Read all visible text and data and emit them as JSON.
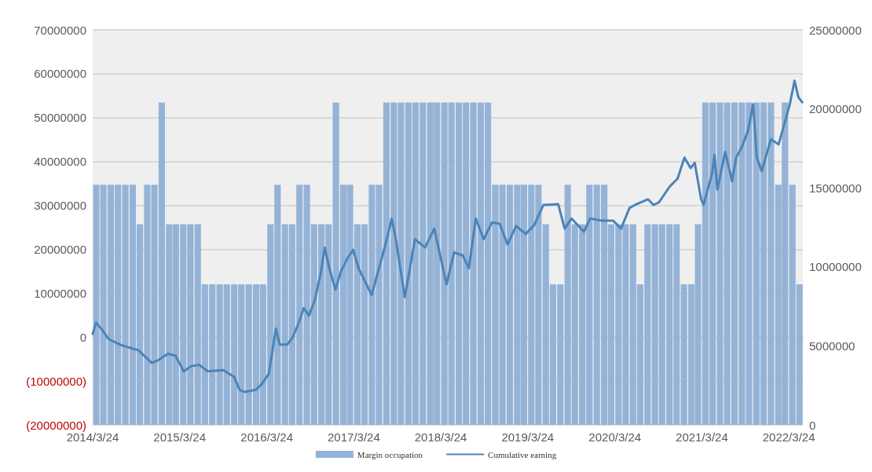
{
  "chart_data": {
    "type": "bar",
    "xlim": [
      "2014-03-24",
      "2022-05-22"
    ],
    "xticks": [
      {
        "value": "2014-03-24",
        "label": "2014/3/24"
      },
      {
        "value": "2015-03-24",
        "label": "2015/3/24"
      },
      {
        "value": "2016-03-24",
        "label": "2016/3/24"
      },
      {
        "value": "2017-03-24",
        "label": "2017/3/24"
      },
      {
        "value": "2018-03-24",
        "label": "2018/3/24"
      },
      {
        "value": "2019-03-24",
        "label": "2019/3/24"
      },
      {
        "value": "2020-03-24",
        "label": "2020/3/24"
      },
      {
        "value": "2021-03-24",
        "label": "2021/3/24"
      },
      {
        "value": "2022-03-24",
        "label": "2022/3/24"
      }
    ],
    "ylim": [
      -20000000,
      70000000
    ],
    "yticks": [
      {
        "value": -20000000,
        "label": "(20000000)"
      },
      {
        "value": -10000000,
        "label": "(10000000)"
      },
      0,
      10000000,
      20000000,
      30000000,
      40000000,
      50000000,
      60000000,
      70000000
    ],
    "y2lim": [
      0,
      25000000
    ],
    "y2ticks": [
      0,
      5000000,
      10000000,
      15000000,
      20000000,
      25000000
    ],
    "grid": "y",
    "legend": "bottom",
    "series": [
      {
        "name": "Margin occupation",
        "axis": "y2",
        "color": "#95b3d7",
        "x": [
          "2014-04-08",
          "2014-05-08",
          "2014-06-08",
          "2014-07-08",
          "2014-08-08",
          "2014-09-08",
          "2014-10-08",
          "2014-11-08",
          "2014-12-08",
          "2015-01-08",
          "2015-02-08",
          "2015-03-08",
          "2015-04-08",
          "2015-05-08",
          "2015-06-08",
          "2015-07-08",
          "2015-08-08",
          "2015-09-08",
          "2015-10-08",
          "2015-11-08",
          "2015-12-08",
          "2016-01-08",
          "2016-02-08",
          "2016-03-08",
          "2016-04-08",
          "2016-05-08",
          "2016-06-08",
          "2016-07-08",
          "2016-08-08",
          "2016-09-08",
          "2016-10-08",
          "2016-11-08",
          "2016-12-08",
          "2017-01-08",
          "2017-02-08",
          "2017-03-08",
          "2017-04-08",
          "2017-05-08",
          "2017-06-08",
          "2017-07-08",
          "2017-08-08",
          "2017-09-08",
          "2017-10-08",
          "2017-11-08",
          "2017-12-08",
          "2018-01-08",
          "2018-02-08",
          "2018-03-08",
          "2018-04-08",
          "2018-05-08",
          "2018-06-08",
          "2018-07-08",
          "2018-08-08",
          "2018-09-08",
          "2018-10-08",
          "2018-11-08",
          "2018-12-08",
          "2019-01-08",
          "2019-02-08",
          "2019-03-08",
          "2019-04-08",
          "2019-05-08",
          "2019-06-08",
          "2019-07-08",
          "2019-08-08",
          "2019-09-08",
          "2019-10-08",
          "2019-11-08",
          "2019-12-08",
          "2020-01-08",
          "2020-02-08",
          "2020-03-08",
          "2020-04-08",
          "2020-05-08",
          "2020-06-08",
          "2020-07-08",
          "2020-08-08",
          "2020-09-08",
          "2020-10-08",
          "2020-11-08",
          "2020-12-08",
          "2021-01-08",
          "2021-02-08",
          "2021-03-08",
          "2021-04-08",
          "2021-05-08",
          "2021-06-08",
          "2021-07-08",
          "2021-08-08",
          "2021-09-08",
          "2021-10-08",
          "2021-11-08",
          "2021-12-08",
          "2022-01-08",
          "2022-02-08",
          "2022-03-08",
          "2022-04-08",
          "2022-05-08"
        ],
        "values": [
          15200000,
          15200000,
          15200000,
          15200000,
          15200000,
          15200000,
          12700000,
          15200000,
          15200000,
          20400000,
          12700000,
          12700000,
          12700000,
          12700000,
          12700000,
          8900000,
          8900000,
          8900000,
          8900000,
          8900000,
          8900000,
          8900000,
          8900000,
          8900000,
          12700000,
          15200000,
          12700000,
          12700000,
          15200000,
          15200000,
          12700000,
          12700000,
          12700000,
          20400000,
          15200000,
          15200000,
          12700000,
          12700000,
          15200000,
          15200000,
          20400000,
          20400000,
          20400000,
          20400000,
          20400000,
          20400000,
          20400000,
          20400000,
          20400000,
          20400000,
          20400000,
          20400000,
          20400000,
          20400000,
          20400000,
          15200000,
          15200000,
          15200000,
          15200000,
          15200000,
          15200000,
          15200000,
          12700000,
          8900000,
          8900000,
          15200000,
          12700000,
          12700000,
          15200000,
          15200000,
          15200000,
          12700000,
          12700000,
          12700000,
          12700000,
          8900000,
          12700000,
          12700000,
          12700000,
          12700000,
          12700000,
          8900000,
          8900000,
          12700000,
          20400000,
          20400000,
          20400000,
          20400000,
          20400000,
          20400000,
          20400000,
          20400000,
          20400000,
          20400000,
          15200000,
          20400000,
          15200000,
          8900000
        ]
      },
      {
        "name": "Cumulative earning",
        "type": "line",
        "axis": "y",
        "color": "#4a84b8",
        "x": [
          "2014-03-24",
          "2014-04-07",
          "2014-04-29",
          "2014-05-31",
          "2014-07-16",
          "2014-08-24",
          "2014-10-02",
          "2014-11-27",
          "2014-12-19",
          "2015-02-03",
          "2015-03-06",
          "2015-04-10",
          "2015-05-13",
          "2015-06-14",
          "2015-07-20",
          "2015-09-23",
          "2015-11-08",
          "2015-11-30",
          "2015-12-23",
          "2016-02-07",
          "2016-03-01",
          "2016-04-01",
          "2016-04-17",
          "2016-05-01",
          "2016-05-17",
          "2016-06-18",
          "2016-07-11",
          "2016-08-03",
          "2016-08-26",
          "2016-09-17",
          "2016-10-11",
          "2016-11-05",
          "2016-11-22",
          "2016-12-11",
          "2017-01-06",
          "2017-01-29",
          "2017-02-27",
          "2017-03-21",
          "2017-04-13",
          "2017-06-07",
          "2017-08-04",
          "2017-08-30",
          "2017-09-15",
          "2017-10-24",
          "2017-12-06",
          "2018-01-17",
          "2018-02-25",
          "2018-04-17",
          "2018-05-19",
          "2018-06-24",
          "2018-07-20",
          "2018-08-18",
          "2018-09-20",
          "2018-10-25",
          "2018-11-27",
          "2018-12-29",
          "2019-02-03",
          "2019-03-16",
          "2019-04-21",
          "2019-05-29",
          "2019-07-30",
          "2019-08-26",
          "2019-09-24",
          "2019-11-15",
          "2019-12-11",
          "2020-02-01",
          "2020-03-17",
          "2020-04-19",
          "2020-05-24",
          "2020-06-16",
          "2020-08-10",
          "2020-09-02",
          "2020-09-25",
          "2020-11-09",
          "2020-12-12",
          "2021-01-10",
          "2021-02-05",
          "2021-02-22",
          "2021-03-21",
          "2021-03-31",
          "2021-05-06",
          "2021-05-16",
          "2021-05-28",
          "2021-06-30",
          "2021-07-29",
          "2021-08-15",
          "2021-09-07",
          "2021-10-03",
          "2021-10-25",
          "2021-11-10",
          "2021-11-30",
          "2022-01-08",
          "2022-02-09",
          "2022-03-09",
          "2022-03-28",
          "2022-04-17",
          "2022-05-03",
          "2022-05-19"
        ],
        "values": [
          700000,
          3300000,
          1900000,
          -500000,
          -1700000,
          -2400000,
          -3000000,
          -5900000,
          -5400000,
          -3800000,
          -4200000,
          -7800000,
          -6600000,
          -6300000,
          -7800000,
          -7500000,
          -9100000,
          -12000000,
          -12500000,
          -12000000,
          -10800000,
          -8400000,
          -3000000,
          1900000,
          -1700000,
          -1700000,
          0,
          3000000,
          6600000,
          4900000,
          8400000,
          14500000,
          20400000,
          15700000,
          10800000,
          15000000,
          18100000,
          19900000,
          15700000,
          9600000,
          21100000,
          27000000,
          22800000,
          9100000,
          22300000,
          20400000,
          24700000,
          12000000,
          19300000,
          18600000,
          15700000,
          27000000,
          22300000,
          26100000,
          25800000,
          21100000,
          25300000,
          23500000,
          25600000,
          30100000,
          30300000,
          24700000,
          27000000,
          24000000,
          27000000,
          26500000,
          26500000,
          24700000,
          29400000,
          30100000,
          31400000,
          30100000,
          30700000,
          34300000,
          36100000,
          40900000,
          38500000,
          39700000,
          31400000,
          30100000,
          37300000,
          41500000,
          33600000,
          42200000,
          35500000,
          40900000,
          43200000,
          46900000,
          53000000,
          40900000,
          37800000,
          45100000,
          43900000,
          49300000,
          53000000,
          58400000,
          54700000,
          53500000
        ]
      }
    ]
  }
}
